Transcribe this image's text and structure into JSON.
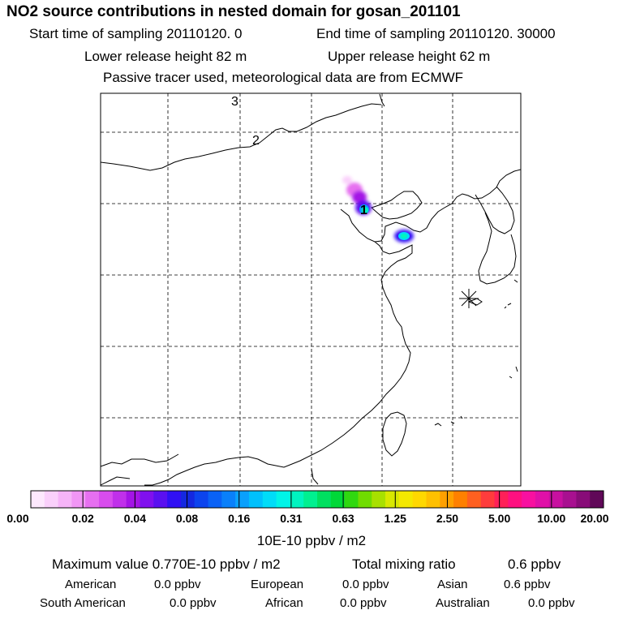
{
  "header": {
    "title": "NO2 source contributions in nested domain for gosan_201101",
    "start_time": "Start time of sampling 20110120.     0",
    "end_time": "End time of sampling 20110120. 30000",
    "lower_release": "Lower release height   82 m",
    "upper_release": "Upper release height   62 m",
    "tracer_note": "Passive tracer used, meteorological data are from ECMWF"
  },
  "map": {
    "labels": [
      "3",
      "2",
      "1"
    ],
    "receptor_marker": "asterisk"
  },
  "colorbar": {
    "colors": [
      "#fde8fd",
      "#fad0fb",
      "#f6b4f8",
      "#f196f5",
      "#e66ff0",
      "#d84ced",
      "#c030ea",
      "#a414e6",
      "#8010ee",
      "#5a10f0",
      "#3010f4",
      "#1428e0",
      "#0c44ee",
      "#0a62f6",
      "#0a80fa",
      "#0aa0fc",
      "#00c0fc",
      "#00dcf8",
      "#00f4e8",
      "#00f4c0",
      "#00f090",
      "#00e060",
      "#00d838",
      "#30d810",
      "#70dc00",
      "#a8e000",
      "#d8e800",
      "#f4e800",
      "#ffd800",
      "#ffc000",
      "#ffa000",
      "#ff8000",
      "#ff6020",
      "#ff3c3c",
      "#ff2058",
      "#ff1080",
      "#f810a0",
      "#e010a8",
      "#c810a0",
      "#a81090",
      "#880c78",
      "#600858"
    ],
    "ticks": [
      "0.00",
      "0.02",
      "0.04",
      "0.08",
      "0.16",
      "0.31",
      "0.63",
      "1.25",
      "2.50",
      "5.00",
      "10.00",
      "20.00"
    ],
    "units": "10E-10 ppbv / m2"
  },
  "summary": {
    "max_value": "Maximum value  0.770E-10 ppbv / m2",
    "total_label": "Total mixing ratio",
    "total_value": "0.6 ppbv"
  },
  "sources": [
    {
      "name": "American",
      "value": "0.0 ppbv"
    },
    {
      "name": "European",
      "value": "0.0 ppbv"
    },
    {
      "name": "Asian",
      "value": "0.6 ppbv"
    },
    {
      "name": "South American",
      "value": "0.0 ppbv"
    },
    {
      "name": "African",
      "value": "0.0 ppbv"
    },
    {
      "name": "Australian",
      "value": "0.0 ppbv"
    }
  ]
}
